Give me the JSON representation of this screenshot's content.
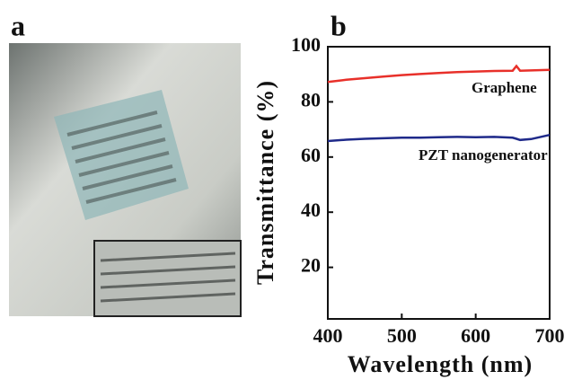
{
  "panel_labels": [
    "a",
    "b"
  ],
  "chart_data": {
    "type": "line",
    "xlabel": "Wavelength (nm)",
    "ylabel": "Transmittance (%)",
    "x": [
      400,
      425,
      450,
      475,
      500,
      525,
      550,
      575,
      600,
      625,
      650,
      655,
      660,
      675,
      700
    ],
    "series": [
      {
        "name": "Graphene",
        "color": "#e8302a",
        "values": [
          87.2,
          88,
          88.6,
          89.2,
          89.7,
          90.1,
          90.5,
          90.8,
          91,
          91.2,
          91.3,
          93,
          91.3,
          91.4,
          91.6
        ]
      },
      {
        "name": "PZT nanogenerator",
        "color": "#1f2a8a",
        "values": [
          65.8,
          66.3,
          66.6,
          66.8,
          67,
          67,
          67.2,
          67.3,
          67.2,
          67.3,
          67,
          66.6,
          66.2,
          66.5,
          68
        ]
      }
    ],
    "xlim": [
      400,
      700
    ],
    "xticks": [
      400,
      500,
      600,
      700
    ],
    "ylim": [
      0,
      100
    ],
    "yticks": [
      20,
      40,
      60,
      80,
      100
    ]
  }
}
